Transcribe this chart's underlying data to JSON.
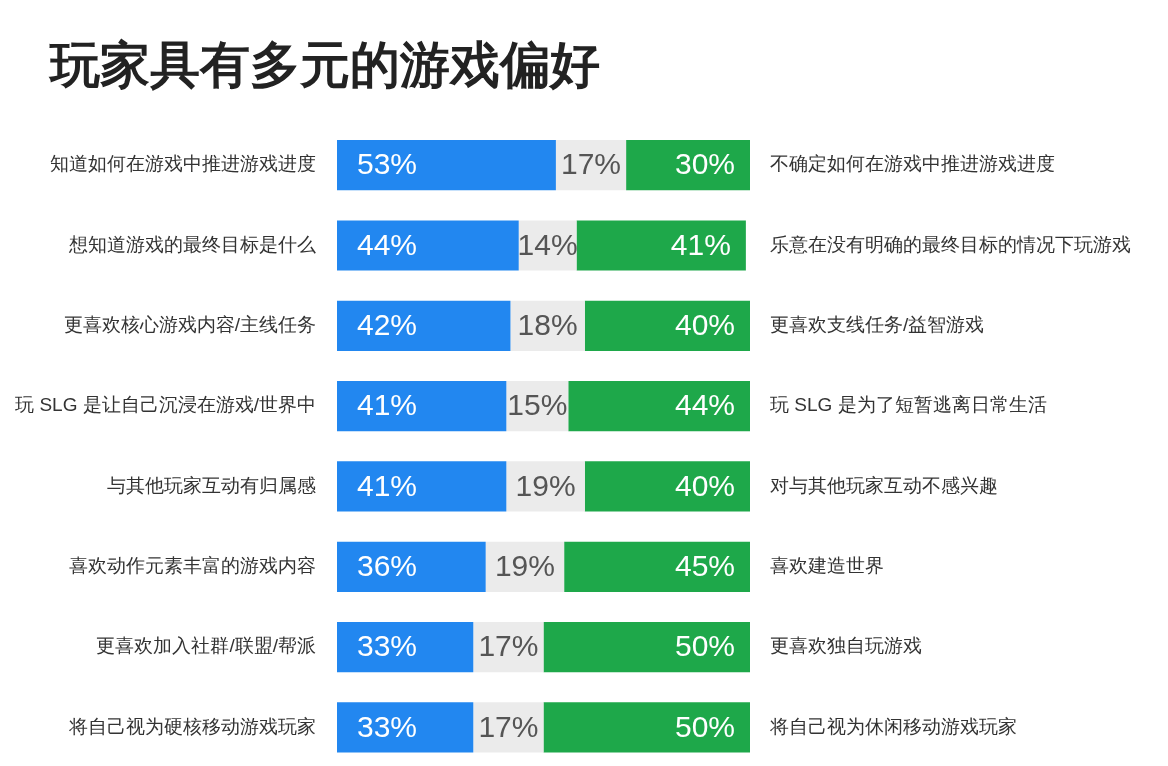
{
  "chart_data": {
    "type": "bar",
    "orientation": "horizontal",
    "stacked": true,
    "title": "玩家具有多元的游戏偏好",
    "categories": [
      "知道如何在游戏中推进游戏进度",
      "想知道游戏的最终目标是什么",
      "更喜欢核心游戏内容/主线任务",
      "玩 SLG 是让自己沉浸在游戏/世界中",
      "与其他玩家互动有归属感",
      "喜欢动作元素丰富的游戏内容",
      "更喜欢加入社群/联盟/帮派",
      "将自己视为硬核移动游戏玩家"
    ],
    "y2_categories": [
      "不确定如何在游戏中推进游戏进度",
      "乐意在没有明确的最终目标的情况下玩游戏",
      "更喜欢支线任务/益智游戏",
      "玩 SLG 是为了短暂逃离日常生活",
      "对与其他玩家互动不感兴趣",
      "喜欢建造世界",
      "更喜欢独自玩游戏",
      "将自己视为休闲移动游戏玩家"
    ],
    "series": [
      {
        "color": "#2287f0",
        "values": [
          53,
          44,
          42,
          41,
          41,
          36,
          33,
          33
        ],
        "value_labels": [
          "53%",
          "44%",
          "42%",
          "41%",
          "41%",
          "36%",
          "33%",
          "33%"
        ]
      },
      {
        "color": "#ebebeb",
        "values": [
          17,
          14,
          18,
          15,
          19,
          19,
          17,
          17
        ],
        "value_labels": [
          "17%",
          "14%",
          "18%",
          "15%",
          "19%",
          "19%",
          "17%",
          "17%"
        ]
      },
      {
        "color": "#1ea84a",
        "values": [
          30,
          41,
          40,
          44,
          40,
          45,
          50,
          50
        ],
        "value_labels": [
          "30%",
          "41%",
          "40%",
          "44%",
          "40%",
          "45%",
          "50%",
          "50%"
        ]
      }
    ],
    "xlim": [
      0,
      100
    ],
    "tick_labels": "y"
  }
}
